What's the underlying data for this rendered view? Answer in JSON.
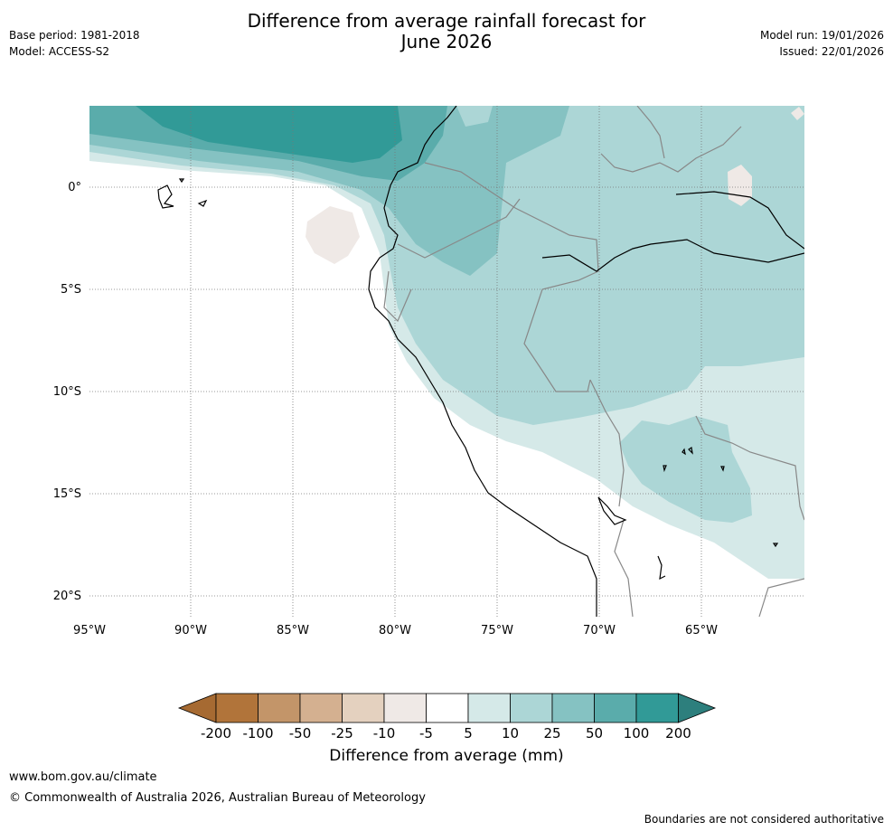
{
  "header": {
    "title_line1": "Difference from average rainfall forecast for",
    "title_line2": "June 2026",
    "base_period": "Base period: 1981-2018",
    "model": "Model: ACCESS-S2",
    "model_run": "Model run: 19/01/2026",
    "issued": "Issued: 22/01/2026"
  },
  "map": {
    "lat_labels": [
      "0°",
      "5°S",
      "10°S",
      "15°S",
      "20°S"
    ],
    "lon_labels": [
      "95°W",
      "90°W",
      "85°W",
      "80°W",
      "75°W",
      "70°W",
      "65°W"
    ]
  },
  "colorbar": {
    "ticks": [
      "-200",
      "-100",
      "-50",
      "-25",
      "-10",
      "-5",
      "5",
      "10",
      "25",
      "50",
      "100",
      "200"
    ],
    "colors": [
      "#a66a32",
      "#b1743a",
      "#c39569",
      "#d4b090",
      "#e4d1bf",
      "#efe9e6",
      "#ffffff",
      "#d5e9e8",
      "#acd6d6",
      "#85c2c2",
      "#5aacab",
      "#319a97",
      "#2d7f7d"
    ],
    "label": "Difference from average (mm)"
  },
  "footer": {
    "url": "www.bom.gov.au/climate",
    "copyright": "© Commonwealth of Australia 2026, Australian Bureau of Meteorology",
    "note": "Boundaries are not considered authoritative"
  }
}
